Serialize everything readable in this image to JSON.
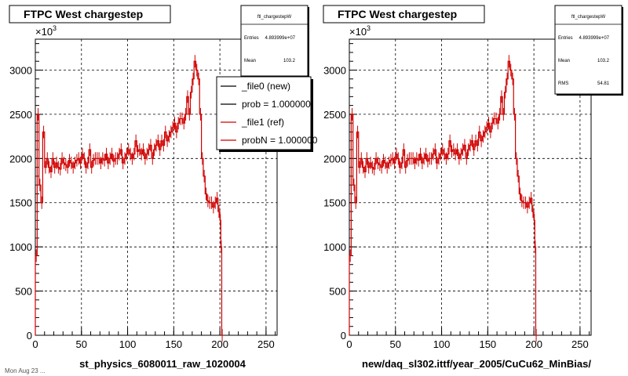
{
  "footer_text": "Mon Aug 23 ...",
  "chart_data": [
    {
      "type": "line",
      "title": "FTPC West chargestep",
      "xlabel": "st_physics_6080011_raw_1020004",
      "ylabel": "",
      "exponent_label": "×10",
      "exponent_power": "3",
      "xlim": [
        0,
        262
      ],
      "ylim": [
        0,
        3350
      ],
      "xticks": [
        0,
        50,
        100,
        150,
        200,
        250
      ],
      "yticks": [
        0,
        500,
        1000,
        1500,
        2000,
        2500,
        3000
      ],
      "ytick_labels": [
        "0",
        "500",
        "1000",
        "1500",
        "2000",
        "2500",
        "3000"
      ],
      "grid": true,
      "stats": {
        "name": "ftl_chargestepW",
        "rows": [
          {
            "label": "Entries",
            "value": "4.893999e+07"
          },
          {
            "label": "Mean",
            "value": "103.2"
          }
        ]
      },
      "legend": {
        "position": "top-right",
        "entries": [
          {
            "label": "_file0 (new)",
            "color": "#000000"
          },
          {
            "label": "prob = 1.000000",
            "color": "#000000"
          },
          {
            "label": "_file1 (ref)",
            "color": "#d00000"
          },
          {
            "label": "probN = 1.000000",
            "color": "#d00000"
          }
        ]
      },
      "series": [
        {
          "color": "#d00000",
          "x": [
            0,
            2,
            4,
            6,
            8,
            10,
            12,
            14,
            16,
            18,
            20,
            22,
            24,
            26,
            28,
            30,
            32,
            34,
            36,
            38,
            40,
            42,
            44,
            46,
            48,
            50,
            52,
            54,
            56,
            58,
            60,
            62,
            64,
            66,
            68,
            70,
            72,
            74,
            76,
            78,
            80,
            82,
            84,
            86,
            88,
            90,
            92,
            94,
            96,
            98,
            100,
            102,
            104,
            106,
            108,
            110,
            112,
            114,
            116,
            118,
            120,
            122,
            124,
            126,
            128,
            130,
            132,
            134,
            136,
            138,
            140,
            142,
            144,
            146,
            148,
            150,
            152,
            154,
            156,
            158,
            160,
            162,
            164,
            166,
            168,
            170,
            172,
            174,
            176,
            178,
            180,
            182,
            184,
            186,
            188,
            190,
            192,
            194,
            196,
            198,
            200,
            201,
            202
          ],
          "values": [
            900,
            2500,
            1700,
            1500,
            2300,
            1900,
            2000,
            1900,
            1850,
            2000,
            1900,
            1950,
            1900,
            1880,
            2000,
            1950,
            1930,
            1900,
            1980,
            1950,
            1900,
            1950,
            1980,
            2000,
            1950,
            2050,
            2000,
            1900,
            1950,
            2100,
            1900,
            1980,
            2000,
            2000,
            2000,
            1950,
            2000,
            1980,
            2050,
            1950,
            2000,
            2050,
            1970,
            2000,
            2000,
            2050,
            2100,
            1950,
            2000,
            2050,
            2100,
            2050,
            2000,
            2050,
            2200,
            2080,
            2100,
            2050,
            2100,
            2000,
            2050,
            2100,
            2150,
            2000,
            2100,
            2150,
            2200,
            2100,
            2200,
            2150,
            2300,
            2200,
            2250,
            2300,
            2350,
            2400,
            2300,
            2400,
            2450,
            2450,
            2400,
            2500,
            2700,
            2500,
            2750,
            2900,
            3100,
            3000,
            2900,
            2500,
            2000,
            1800,
            1600,
            1520,
            1500,
            1500,
            1450,
            1500,
            1550,
            1400,
            1300,
            1000,
            0
          ]
        }
      ]
    },
    {
      "type": "line",
      "title": "FTPC West chargestep",
      "xlabel": "new/daq_sl302.ittf/year_2005/CuCu62_MinBias/",
      "ylabel": "",
      "exponent_label": "×10",
      "exponent_power": "3",
      "xlim": [
        0,
        262
      ],
      "ylim": [
        0,
        3350
      ],
      "xticks": [
        0,
        50,
        100,
        150,
        200,
        250
      ],
      "yticks": [
        0,
        500,
        1000,
        1500,
        2000,
        2500,
        3000
      ],
      "ytick_labels": [
        "0",
        "500",
        "1000",
        "1500",
        "2000",
        "2500",
        "3000"
      ],
      "grid": true,
      "stats": {
        "name": "ftl_chargestepW",
        "rows": [
          {
            "label": "Entries",
            "value": "4.893999e+07"
          },
          {
            "label": "Mean",
            "value": "103.2"
          },
          {
            "label": "RMS",
            "value": "54.81"
          }
        ]
      },
      "legend": null,
      "series": [
        {
          "color": "#d00000",
          "x": [
            0,
            2,
            4,
            6,
            8,
            10,
            12,
            14,
            16,
            18,
            20,
            22,
            24,
            26,
            28,
            30,
            32,
            34,
            36,
            38,
            40,
            42,
            44,
            46,
            48,
            50,
            52,
            54,
            56,
            58,
            60,
            62,
            64,
            66,
            68,
            70,
            72,
            74,
            76,
            78,
            80,
            82,
            84,
            86,
            88,
            90,
            92,
            94,
            96,
            98,
            100,
            102,
            104,
            106,
            108,
            110,
            112,
            114,
            116,
            118,
            120,
            122,
            124,
            126,
            128,
            130,
            132,
            134,
            136,
            138,
            140,
            142,
            144,
            146,
            148,
            150,
            152,
            154,
            156,
            158,
            160,
            162,
            164,
            166,
            168,
            170,
            172,
            174,
            176,
            178,
            180,
            182,
            184,
            186,
            188,
            190,
            192,
            194,
            196,
            198,
            200,
            201,
            202
          ],
          "values": [
            900,
            2500,
            1700,
            1500,
            2300,
            1900,
            2000,
            1900,
            1850,
            2000,
            1900,
            1950,
            1900,
            1880,
            2000,
            1950,
            1930,
            1900,
            1980,
            1950,
            1900,
            1950,
            1980,
            2000,
            1950,
            2050,
            2000,
            1900,
            1950,
            2100,
            1900,
            1980,
            2000,
            2000,
            2000,
            1950,
            2000,
            1980,
            2050,
            1950,
            2000,
            2050,
            1970,
            2000,
            2000,
            2050,
            2100,
            1950,
            2000,
            2050,
            2100,
            2050,
            2000,
            2050,
            2200,
            2080,
            2100,
            2050,
            2100,
            2000,
            2050,
            2100,
            2150,
            2000,
            2100,
            2150,
            2200,
            2100,
            2200,
            2150,
            2300,
            2200,
            2250,
            2300,
            2350,
            2400,
            2300,
            2400,
            2450,
            2450,
            2400,
            2500,
            2700,
            2500,
            2750,
            2900,
            3100,
            3000,
            2900,
            2500,
            2000,
            1800,
            1600,
            1520,
            1500,
            1500,
            1450,
            1500,
            1550,
            1400,
            1300,
            1000,
            0
          ]
        }
      ]
    }
  ]
}
